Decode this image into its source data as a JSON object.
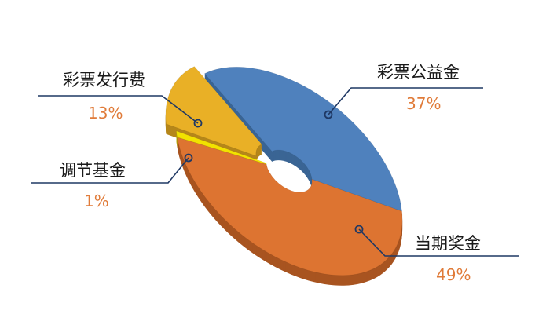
{
  "chart_data": {
    "type": "pie",
    "style": "3d-donut",
    "slices": [
      {
        "label": "彩票公益金",
        "value": 37,
        "value_label": "37%",
        "color": "#4f81bd",
        "side_color": "#3a6594"
      },
      {
        "label": "当期奖金",
        "value": 49,
        "value_label": "49%",
        "color": "#dd7431",
        "side_color": "#a85420"
      },
      {
        "label": "调节基金",
        "value": 1,
        "value_label": "1%",
        "color": "#f2e200",
        "side_color": "#b8ab00"
      },
      {
        "label": "彩票发行费",
        "value": 13,
        "value_label": "13%",
        "color": "#e9b026",
        "side_color": "#b5861a",
        "exploded": true
      }
    ],
    "leader_line_color": "#1f3864",
    "percent_color": "#e07b39"
  }
}
